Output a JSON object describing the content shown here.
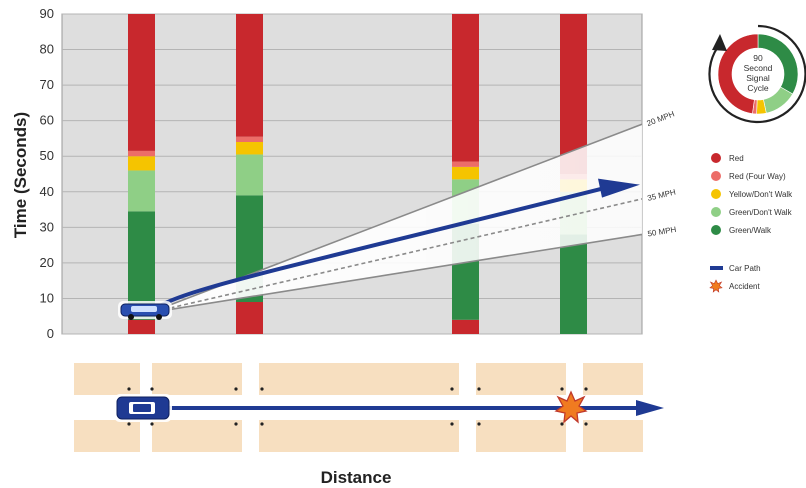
{
  "chart_data": {
    "type": "bar",
    "ylabel": "Time (Seconds)",
    "xlabel": "Distance",
    "ylim": [
      0,
      90
    ],
    "yticks": [
      "0",
      "10",
      "20",
      "30",
      "40",
      "50",
      "60",
      "70",
      "80",
      "90"
    ],
    "grid": true,
    "signals": [
      {
        "segments": [
          {
            "status": "red",
            "from": 0,
            "to": 4
          },
          {
            "status": "green-walk",
            "from": 4,
            "to": 34.5
          },
          {
            "status": "green-dont-walk",
            "from": 34.5,
            "to": 46
          },
          {
            "status": "yellow",
            "from": 46,
            "to": 50
          },
          {
            "status": "red-four-way",
            "from": 50,
            "to": 51.5
          },
          {
            "status": "red",
            "from": 51.5,
            "to": 90
          }
        ]
      },
      {
        "segments": [
          {
            "status": "red",
            "from": 0,
            "to": 9
          },
          {
            "status": "green-walk",
            "from": 9,
            "to": 39
          },
          {
            "status": "green-dont-walk",
            "from": 39,
            "to": 50.5
          },
          {
            "status": "yellow",
            "from": 50.5,
            "to": 54
          },
          {
            "status": "red-four-way",
            "from": 54,
            "to": 55.5
          },
          {
            "status": "red",
            "from": 55.5,
            "to": 90
          }
        ]
      },
      {
        "segments": [
          {
            "status": "red",
            "from": 0,
            "to": 4
          },
          {
            "status": "green-walk",
            "from": 4,
            "to": 31
          },
          {
            "status": "green-dont-walk",
            "from": 31,
            "to": 43.5
          },
          {
            "status": "yellow",
            "from": 43.5,
            "to": 47
          },
          {
            "status": "red-four-way",
            "from": 47,
            "to": 48.5
          },
          {
            "status": "red",
            "from": 48.5,
            "to": 90
          }
        ]
      },
      {
        "segments": [
          {
            "status": "green-walk",
            "from": 0,
            "to": 28
          },
          {
            "status": "green-dont-walk",
            "from": 28,
            "to": 40
          },
          {
            "status": "yellow",
            "from": 40,
            "to": 43.5
          },
          {
            "status": "red-four-way",
            "from": 43.5,
            "to": 45
          },
          {
            "status": "red",
            "from": 45,
            "to": 90
          }
        ]
      }
    ],
    "speed_lines": [
      {
        "name": "20 MPH",
        "end_y": 59
      },
      {
        "name": "35 MPH",
        "end_y": 38
      },
      {
        "name": "50 MPH",
        "end_y": 28
      }
    ],
    "car_path_end_y": 42
  },
  "legend": [
    {
      "label": "Red",
      "color": "#c8282d"
    },
    {
      "label": "Red (Four Way)",
      "color": "#ec6d68"
    },
    {
      "label": "Yellow/Don't Walk",
      "color": "#f5c400"
    },
    {
      "label": "Green/Don't Walk",
      "color": "#8fcf86"
    },
    {
      "label": "Green/Walk",
      "color": "#2e8b46"
    }
  ],
  "legend2": [
    {
      "label": "Car Path",
      "kind": "line",
      "color": "#1f3a93"
    },
    {
      "label": "Accident",
      "kind": "star",
      "color": "#f07b20"
    }
  ],
  "cycle": {
    "lines": [
      "90",
      "Second",
      "Signal",
      "Cycle"
    ]
  },
  "colors": {
    "red": "#c8282d",
    "red-four-way": "#ec6d68",
    "yellow": "#f5c400",
    "green-dont-walk": "#8fcf86",
    "green-walk": "#2e8b46",
    "path": "#1f3a93",
    "plot_bg": "#dedede",
    "block": "#f7dfc0"
  },
  "icons": {
    "car": "car-icon",
    "accident": "explosion-star-icon",
    "direction": "arrow-right-icon"
  }
}
